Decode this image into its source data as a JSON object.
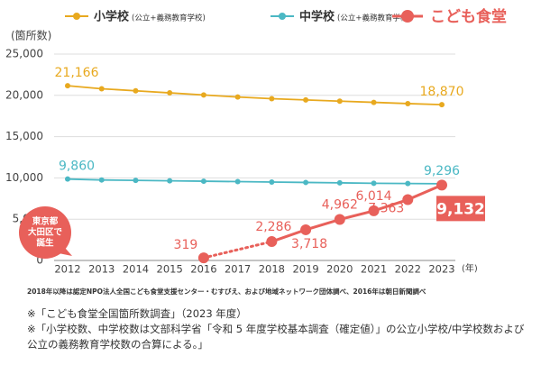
{
  "chart_data": {
    "type": "line",
    "y_label": "(箇所数)",
    "x_unit": "(年)",
    "categories": [
      "2012",
      "2013",
      "2014",
      "2015",
      "2016",
      "2017",
      "2018",
      "2019",
      "2020",
      "2021",
      "2022",
      "2023"
    ],
    "series": [
      {
        "name": "小学校",
        "note": "(公立+義務教育学校)",
        "color": "#e8a91f",
        "values": [
          21166,
          20800,
          20550,
          20300,
          20050,
          19800,
          19600,
          19450,
          19300,
          19150,
          19000,
          18870
        ],
        "value_labels": [
          "21,166",
          null,
          null,
          null,
          null,
          null,
          null,
          null,
          null,
          null,
          null,
          "18,870"
        ]
      },
      {
        "name": "中学校",
        "note": "(公立+義務教育学校)",
        "color": "#4bb8c4",
        "values": [
          9860,
          9750,
          9700,
          9650,
          9600,
          9550,
          9500,
          9450,
          9400,
          9350,
          9320,
          9296
        ],
        "value_labels": [
          "9,860",
          null,
          null,
          null,
          null,
          null,
          null,
          null,
          null,
          null,
          null,
          "9,296"
        ]
      },
      {
        "name": "こども食堂",
        "color": "#e8605a",
        "values": [
          null,
          null,
          null,
          null,
          319,
          null,
          2286,
          3718,
          4962,
          6014,
          7363,
          9132
        ],
        "value_labels": [
          null,
          null,
          null,
          null,
          "319",
          null,
          "2,286",
          "3,718",
          "4,962",
          "6,014",
          "7,363",
          "9,132"
        ]
      }
    ],
    "ylim": [
      0,
      25000
    ],
    "yticks": [
      0,
      {
        "value": 5000,
        "label": "5,000"
      },
      {
        "value": 10000,
        "label": "10,000"
      },
      {
        "value": 15000,
        "label": "15,000"
      },
      {
        "value": 20000,
        "label": "20,000"
      },
      {
        "value": 25000,
        "label": "25,000"
      }
    ],
    "grid": true,
    "annotation": [
      "東京都",
      "大田区で",
      "誕生"
    ],
    "source": "2018年以降は認定NPO法人全国こども食堂支援センター・むすびえ、および地域ネットワーク団体調べ、2016年は朝日新聞調べ",
    "notes": [
      "※「こども食堂全国箇所数調査」（2023 年度）",
      "※「小学校数、中学校数は文部科学省「令和 5 年度学校基本調査（確定値）」の公立小学校/中学校数および公立の義務教育学校数の合算による。」"
    ]
  }
}
